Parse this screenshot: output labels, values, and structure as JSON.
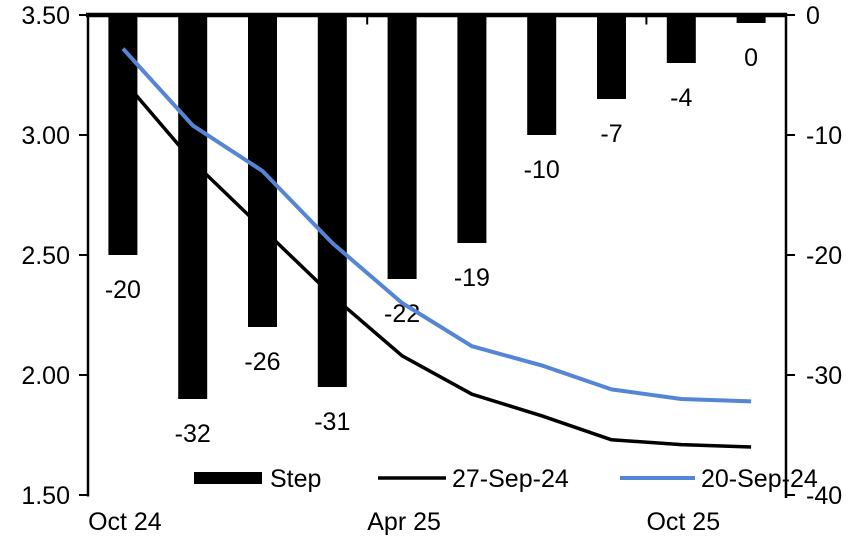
{
  "chart_data": {
    "type": "combo-bar-line",
    "n_categories": 10,
    "x_axis": {
      "tick_labels": [
        "Oct 24",
        "Apr 25",
        "Oct 25"
      ],
      "labeled_category_indexes": [
        0,
        4,
        8
      ],
      "boundary_tick_indexes": [
        4,
        8
      ]
    },
    "left_axis": {
      "tick_labels": [
        "3.50",
        "3.00",
        "2.50",
        "2.00",
        "1.50"
      ],
      "min": 1.5,
      "max": 3.5
    },
    "right_axis": {
      "tick_labels": [
        "0",
        "-10",
        "-20",
        "-30",
        "-40"
      ],
      "min": -40,
      "max": 0
    },
    "series": [
      {
        "name": "Step",
        "type": "bar",
        "axis": "right",
        "color": "#000000",
        "values": [
          -20,
          -32,
          -26,
          -31,
          -22,
          -19,
          -10,
          -7,
          -4,
          0
        ],
        "data_labels": [
          "-20",
          "-32",
          "-26",
          "-31",
          "-22",
          "-19",
          "-10",
          "-7",
          "-4",
          "0"
        ]
      },
      {
        "name": "27-Sep-24",
        "type": "line",
        "axis": "left",
        "color": "#000000",
        "values": [
          3.23,
          2.89,
          2.61,
          2.33,
          2.08,
          1.92,
          1.83,
          1.73,
          1.71,
          1.7
        ]
      },
      {
        "name": "20-Sep-24",
        "type": "line",
        "axis": "left",
        "color": "#5585D5",
        "values": [
          3.36,
          3.04,
          2.85,
          2.55,
          2.3,
          2.12,
          2.04,
          1.94,
          1.9,
          1.89
        ]
      }
    ],
    "legend": {
      "position": "bottom",
      "entries": [
        "Step",
        "27-Sep-24",
        "20-Sep-24"
      ]
    }
  },
  "colors": {
    "background": "#ffffff",
    "axis": "#000000",
    "text": "#000000",
    "blue_line": "#5585D5"
  }
}
